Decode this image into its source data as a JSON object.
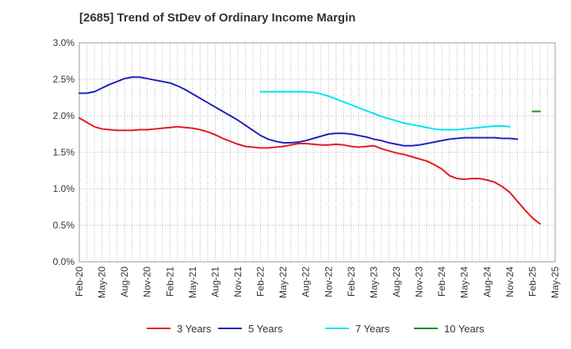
{
  "chart_data": {
    "type": "line",
    "title": "[2685]  Trend of StDev of Ordinary Income Margin",
    "xlabel": "",
    "ylabel": "",
    "x_ticks": [
      "Feb-20",
      "May-20",
      "Aug-20",
      "Nov-20",
      "Feb-21",
      "May-21",
      "Aug-21",
      "Nov-21",
      "Feb-22",
      "May-22",
      "Aug-22",
      "Nov-22",
      "Feb-23",
      "May-23",
      "Aug-23",
      "Nov-23",
      "Feb-24",
      "May-24",
      "Aug-24",
      "Nov-24",
      "Feb-25",
      "May-25"
    ],
    "y_ticks": [
      "0.0%",
      "0.5%",
      "1.0%",
      "1.5%",
      "2.0%",
      "2.5%",
      "3.0%"
    ],
    "ylim": [
      0,
      3.0
    ],
    "grid": true,
    "legend_position": "bottom",
    "series": [
      {
        "name": "3 Years",
        "color": "#e31a1c",
        "start_index": 0,
        "values": [
          1.97,
          1.91,
          1.85,
          1.82,
          1.81,
          1.8,
          1.8,
          1.8,
          1.81,
          1.81,
          1.82,
          1.83,
          1.84,
          1.85,
          1.84,
          1.83,
          1.81,
          1.78,
          1.74,
          1.69,
          1.65,
          1.61,
          1.58,
          1.57,
          1.56,
          1.56,
          1.57,
          1.58,
          1.6,
          1.62,
          1.62,
          1.61,
          1.6,
          1.6,
          1.61,
          1.6,
          1.58,
          1.57,
          1.58,
          1.59,
          1.55,
          1.52,
          1.49,
          1.47,
          1.44,
          1.41,
          1.38,
          1.33,
          1.27,
          1.18,
          1.14,
          1.13,
          1.14,
          1.14,
          1.12,
          1.09,
          1.03,
          0.95,
          0.83,
          0.71,
          0.6,
          0.52
        ]
      },
      {
        "name": "5 Years",
        "color": "#1f1fbf",
        "start_index": 0,
        "values": [
          2.31,
          2.31,
          2.33,
          2.38,
          2.43,
          2.47,
          2.51,
          2.53,
          2.53,
          2.51,
          2.49,
          2.47,
          2.45,
          2.41,
          2.36,
          2.3,
          2.24,
          2.18,
          2.12,
          2.06,
          2.0,
          1.94,
          1.87,
          1.8,
          1.73,
          1.68,
          1.65,
          1.63,
          1.63,
          1.64,
          1.66,
          1.69,
          1.72,
          1.75,
          1.76,
          1.76,
          1.75,
          1.73,
          1.71,
          1.68,
          1.66,
          1.63,
          1.61,
          1.59,
          1.59,
          1.6,
          1.62,
          1.64,
          1.66,
          1.68,
          1.69,
          1.7,
          1.7,
          1.7,
          1.7,
          1.7,
          1.69,
          1.69,
          1.68
        ]
      },
      {
        "name": "7 Years",
        "color": "#00e5ee",
        "start_index": 24,
        "values": [
          2.33,
          2.33,
          2.33,
          2.33,
          2.33,
          2.33,
          2.33,
          2.32,
          2.3,
          2.27,
          2.23,
          2.19,
          2.15,
          2.11,
          2.07,
          2.03,
          1.99,
          1.96,
          1.93,
          1.9,
          1.88,
          1.86,
          1.84,
          1.82,
          1.81,
          1.81,
          1.81,
          1.82,
          1.83,
          1.84,
          1.85,
          1.86,
          1.86,
          1.85
        ]
      },
      {
        "name": "10 Years",
        "color": "#228b22",
        "start_index": 60,
        "values": [
          2.06,
          2.06
        ]
      }
    ]
  }
}
